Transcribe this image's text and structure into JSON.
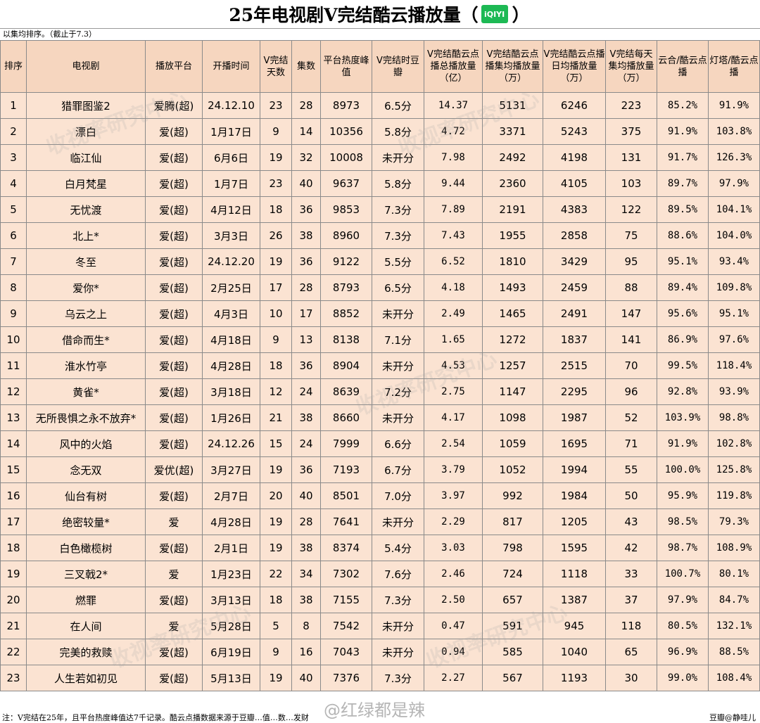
{
  "title": {
    "main": "25年电视剧V完结酷云播放量（",
    "logo": "iQIYI",
    "close": "）"
  },
  "subtitle": "以集均排序。（截止于7.3）",
  "columns": [
    "排序",
    "电视剧",
    "播放平台",
    "开播时间",
    "V完结天数",
    "集数",
    "平台热度峰值",
    "V完结时豆瓣",
    "V完结酷云点播总播放量（亿）",
    "V完结酷云点播集均播放量（万）",
    "V完结酷云点播日均播放量（万）",
    "V完结每天集均播放量（万）",
    "云合/酷云点播",
    "灯塔/酷云点播"
  ],
  "rows": [
    [
      "1",
      "猎罪图鉴2",
      "爱腾(超)",
      "24.12.10",
      "23",
      "28",
      "8973",
      "6.5分",
      "14.37",
      "5131",
      "6246",
      "223",
      "85.2%",
      "91.9%"
    ],
    [
      "2",
      "漂白",
      "爱(超)",
      "1月17日",
      "9",
      "14",
      "10356",
      "5.8分",
      "4.72",
      "3371",
      "5243",
      "375",
      "91.9%",
      "103.8%"
    ],
    [
      "3",
      "临江仙",
      "爱(超)",
      "6月6日",
      "19",
      "32",
      "10008",
      "未开分",
      "7.98",
      "2492",
      "4198",
      "131",
      "91.7%",
      "126.3%"
    ],
    [
      "4",
      "白月梵星",
      "爱(超)",
      "1月7日",
      "23",
      "40",
      "9637",
      "5.8分",
      "9.44",
      "2360",
      "4105",
      "103",
      "89.7%",
      "97.9%"
    ],
    [
      "5",
      "无忧渡",
      "爱(超)",
      "4月12日",
      "18",
      "36",
      "9853",
      "7.3分",
      "7.89",
      "2191",
      "4383",
      "122",
      "89.5%",
      "104.1%"
    ],
    [
      "6",
      "北上*",
      "爱(超)",
      "3月3日",
      "26",
      "38",
      "8960",
      "7.3分",
      "7.43",
      "1955",
      "2858",
      "75",
      "88.6%",
      "104.0%"
    ],
    [
      "7",
      "冬至",
      "爱(超)",
      "24.12.20",
      "19",
      "36",
      "9122",
      "5.5分",
      "6.52",
      "1810",
      "3429",
      "95",
      "95.1%",
      "93.4%"
    ],
    [
      "8",
      "爱你*",
      "爱(超)",
      "2月25日",
      "17",
      "28",
      "8793",
      "6.5分",
      "4.18",
      "1493",
      "2459",
      "88",
      "89.4%",
      "109.8%"
    ],
    [
      "9",
      "乌云之上",
      "爱(超)",
      "4月3日",
      "10",
      "17",
      "8852",
      "未开分",
      "2.49",
      "1465",
      "2491",
      "147",
      "95.6%",
      "95.1%"
    ],
    [
      "10",
      "借命而生*",
      "爱(超)",
      "4月18日",
      "9",
      "13",
      "8138",
      "7.1分",
      "1.65",
      "1272",
      "1837",
      "141",
      "86.9%",
      "97.6%"
    ],
    [
      "11",
      "淮水竹亭",
      "爱(超)",
      "4月28日",
      "18",
      "36",
      "8904",
      "未开分",
      "4.53",
      "1257",
      "2515",
      "70",
      "99.5%",
      "118.4%"
    ],
    [
      "12",
      "黄雀*",
      "爱(超)",
      "3月18日",
      "12",
      "24",
      "8639",
      "7.2分",
      "2.75",
      "1147",
      "2295",
      "96",
      "92.8%",
      "93.9%"
    ],
    [
      "13",
      "无所畏惧之永不放弃*",
      "爱(超)",
      "1月26日",
      "21",
      "38",
      "8660",
      "未开分",
      "4.17",
      "1098",
      "1987",
      "52",
      "103.9%",
      "98.8%"
    ],
    [
      "14",
      "风中的火焰",
      "爱(超)",
      "24.12.26",
      "15",
      "24",
      "7999",
      "6.6分",
      "2.54",
      "1059",
      "1695",
      "71",
      "91.9%",
      "102.8%"
    ],
    [
      "15",
      "念无双",
      "爱优(超)",
      "3月27日",
      "19",
      "36",
      "7193",
      "6.7分",
      "3.79",
      "1052",
      "1994",
      "55",
      "100.0%",
      "125.8%"
    ],
    [
      "16",
      "仙台有树",
      "爱(超)",
      "2月7日",
      "20",
      "40",
      "8501",
      "7.0分",
      "3.97",
      "992",
      "1984",
      "50",
      "95.9%",
      "119.8%"
    ],
    [
      "17",
      "绝密较量*",
      "爱",
      "4月28日",
      "19",
      "28",
      "7641",
      "未开分",
      "2.29",
      "817",
      "1205",
      "43",
      "98.5%",
      "79.3%"
    ],
    [
      "18",
      "白色橄榄树",
      "爱(超)",
      "2月1日",
      "19",
      "38",
      "8374",
      "5.4分",
      "3.03",
      "798",
      "1595",
      "42",
      "98.7%",
      "108.9%"
    ],
    [
      "19",
      "三叉戟2*",
      "爱",
      "1月23日",
      "22",
      "34",
      "7302",
      "7.6分",
      "2.46",
      "724",
      "1118",
      "33",
      "100.7%",
      "80.1%"
    ],
    [
      "20",
      "燃罪",
      "爱(超)",
      "3月13日",
      "18",
      "38",
      "7155",
      "7.3分",
      "2.50",
      "657",
      "1387",
      "37",
      "97.9%",
      "84.7%"
    ],
    [
      "21",
      "在人间",
      "爱",
      "5月28日",
      "5",
      "8",
      "7542",
      "未开分",
      "0.47",
      "591",
      "945",
      "118",
      "80.5%",
      "132.1%"
    ],
    [
      "22",
      "完美的救赎",
      "爱(超)",
      "6月19日",
      "9",
      "16",
      "7043",
      "未开分",
      "0.94",
      "585",
      "1040",
      "65",
      "96.9%",
      "88.5%"
    ],
    [
      "23",
      "人生若如初见",
      "爱(超)",
      "5月13日",
      "19",
      "40",
      "7376",
      "7.3分",
      "2.27",
      "567",
      "1193",
      "30",
      "99.0%",
      "108.4%"
    ]
  ],
  "footer": {
    "note": "注：V完结在25年，且平台热度峰值达7千记录。酷云点播数据来源于豆瓣…值…数…发财",
    "author": "豆瓣@静哇儿"
  },
  "watermark": {
    "text": "收视率研究中心",
    "weibo": "@红绿都是辣"
  },
  "colors": {
    "header_bg": "#f6d6bf",
    "cell_bg": "#fbe3d2",
    "border": "#8a8a8a",
    "logo_bg": "#1db954"
  }
}
